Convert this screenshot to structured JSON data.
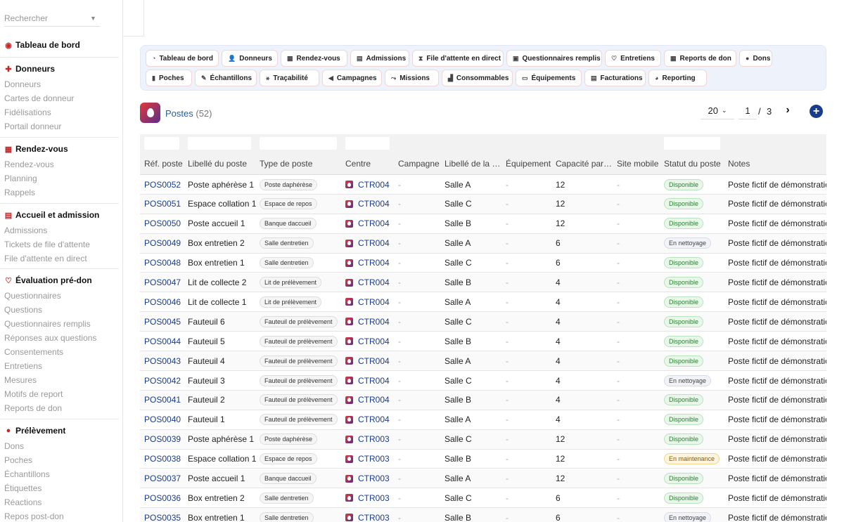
{
  "sidebar": {
    "search_placeholder": "Rechercher",
    "sections": [
      {
        "title": "Tableau de bord",
        "icon": "dashboard-icon",
        "items": []
      },
      {
        "title": "Donneurs",
        "icon": "add-user-icon",
        "items": [
          "Donneurs",
          "Cartes de donneur",
          "Fidélisations",
          "Portail donneur"
        ]
      },
      {
        "title": "Rendez-vous",
        "icon": "calendar-icon",
        "items": [
          "Rendez-vous",
          "Planning",
          "Rappels"
        ]
      },
      {
        "title": "Accueil et admission",
        "icon": "clipboard-icon",
        "items": [
          "Admissions",
          "Tickets de file d'attente",
          "File d'attente en direct"
        ]
      },
      {
        "title": "Évaluation pré-don",
        "icon": "stethoscope-icon",
        "items": [
          "Questionnaires",
          "Questions",
          "Questionnaires remplis",
          "Réponses aux questions",
          "Consentements",
          "Entretiens",
          "Mesures",
          "Motifs de report",
          "Reports de don"
        ]
      },
      {
        "title": "Prélèvement",
        "icon": "blood-drop-icon",
        "items": [
          "Dons",
          "Poches",
          "Échantillons",
          "Étiquettes",
          "Réactions",
          "Repos post-don"
        ]
      }
    ]
  },
  "quicknav": {
    "row1": [
      {
        "label": "Tableau de bord",
        "icon": "gauge-icon",
        "glyph": "◔"
      },
      {
        "label": "Donneurs",
        "icon": "add-user-icon",
        "glyph": "👤"
      },
      {
        "label": "Rendez-vous",
        "icon": "calendar-icon",
        "glyph": "▦"
      },
      {
        "label": "Admissions",
        "icon": "clipboard-icon",
        "glyph": "▤"
      },
      {
        "label": "File d'attente en direct",
        "icon": "hourglass-icon",
        "glyph": "⧗"
      },
      {
        "label": "Questionnaires remplis",
        "icon": "form-icon",
        "glyph": "▣"
      },
      {
        "label": "Entretiens",
        "icon": "stethoscope-icon",
        "glyph": "♡"
      },
      {
        "label": "Reports de don",
        "icon": "calendar-x-icon",
        "glyph": "▦"
      },
      {
        "label": "Dons",
        "icon": "blood-drop-icon",
        "glyph": "●"
      }
    ],
    "row2": [
      {
        "label": "Poches",
        "icon": "bag-icon",
        "glyph": "▮"
      },
      {
        "label": "Échantillons",
        "icon": "pipette-icon",
        "glyph": "✎"
      },
      {
        "label": "Traçabilité",
        "icon": "diagram-icon",
        "glyph": "⚹"
      },
      {
        "label": "Campagnes",
        "icon": "megaphone-icon",
        "glyph": "◀"
      },
      {
        "label": "Missions",
        "icon": "route-icon",
        "glyph": "⤳"
      },
      {
        "label": "Consommables",
        "icon": "boxes-icon",
        "glyph": "▟"
      },
      {
        "label": "Équipements",
        "icon": "monitor-icon",
        "glyph": "▭"
      },
      {
        "label": "Facturations",
        "icon": "invoice-icon",
        "glyph": "▤"
      },
      {
        "label": "Reporting",
        "icon": "pie-chart-icon",
        "glyph": "◕"
      }
    ]
  },
  "header": {
    "title": "Postes",
    "count": "(52)"
  },
  "pagination": {
    "per_page": "20",
    "page": "1",
    "separator": "/",
    "total_pages": "3"
  },
  "columns": [
    "Réf. poste",
    "Libellé du poste",
    "Type de poste",
    "Centre",
    "Campagne",
    "Libellé de la …",
    "Équipement",
    "Capacité par…",
    "Site mobile",
    "Statut du poste",
    "Notes"
  ],
  "status_styles": {
    "Disponible": {
      "bg": "#e8f7ea",
      "border": "#b9e3bf",
      "color": "#2e7d32"
    },
    "En nettoyage": {
      "bg": "#f1f3f8",
      "border": "#d7dbe6",
      "color": "#444444"
    },
    "En maintenance": {
      "bg": "#fff4dc",
      "border": "#f3d28f",
      "color": "#8a5a00"
    }
  },
  "rows": [
    {
      "ref": "POS0052",
      "libelle": "Poste aphérèse 1",
      "type": "Poste daphérèse",
      "centre": "CTR004",
      "campagne": "-",
      "salle": "Salle A",
      "equipement": "-",
      "capacite": "12",
      "site": "-",
      "statut": "Disponible",
      "notes": "Poste fictif de démonstration"
    },
    {
      "ref": "POS0051",
      "libelle": "Espace collation 1",
      "type": "Espace de repos",
      "centre": "CTR004",
      "campagne": "-",
      "salle": "Salle C",
      "equipement": "-",
      "capacite": "12",
      "site": "-",
      "statut": "Disponible",
      "notes": "Poste fictif de démonstration"
    },
    {
      "ref": "POS0050",
      "libelle": "Poste accueil 1",
      "type": "Banque daccueil",
      "centre": "CTR004",
      "campagne": "-",
      "salle": "Salle B",
      "equipement": "-",
      "capacite": "12",
      "site": "-",
      "statut": "Disponible",
      "notes": "Poste fictif de démonstration"
    },
    {
      "ref": "POS0049",
      "libelle": "Box entretien 2",
      "type": "Salle dentretien",
      "centre": "CTR004",
      "campagne": "-",
      "salle": "Salle A",
      "equipement": "-",
      "capacite": "6",
      "site": "-",
      "statut": "En nettoyage",
      "notes": "Poste fictif de démonstration"
    },
    {
      "ref": "POS0048",
      "libelle": "Box entretien 1",
      "type": "Salle dentretien",
      "centre": "CTR004",
      "campagne": "-",
      "salle": "Salle C",
      "equipement": "-",
      "capacite": "6",
      "site": "-",
      "statut": "Disponible",
      "notes": "Poste fictif de démonstration"
    },
    {
      "ref": "POS0047",
      "libelle": "Lit de collecte 2",
      "type": "Lit de prélèvement",
      "centre": "CTR004",
      "campagne": "-",
      "salle": "Salle B",
      "equipement": "-",
      "capacite": "4",
      "site": "-",
      "statut": "Disponible",
      "notes": "Poste fictif de démonstration"
    },
    {
      "ref": "POS0046",
      "libelle": "Lit de collecte 1",
      "type": "Lit de prélèvement",
      "centre": "CTR004",
      "campagne": "-",
      "salle": "Salle A",
      "equipement": "-",
      "capacite": "4",
      "site": "-",
      "statut": "Disponible",
      "notes": "Poste fictif de démonstration"
    },
    {
      "ref": "POS0045",
      "libelle": "Fauteuil 6",
      "type": "Fauteuil de prélèvement",
      "centre": "CTR004",
      "campagne": "-",
      "salle": "Salle C",
      "equipement": "-",
      "capacite": "4",
      "site": "-",
      "statut": "Disponible",
      "notes": "Poste fictif de démonstration"
    },
    {
      "ref": "POS0044",
      "libelle": "Fauteuil 5",
      "type": "Fauteuil de prélèvement",
      "centre": "CTR004",
      "campagne": "-",
      "salle": "Salle B",
      "equipement": "-",
      "capacite": "4",
      "site": "-",
      "statut": "Disponible",
      "notes": "Poste fictif de démonstration"
    },
    {
      "ref": "POS0043",
      "libelle": "Fauteuil 4",
      "type": "Fauteuil de prélèvement",
      "centre": "CTR004",
      "campagne": "-",
      "salle": "Salle A",
      "equipement": "-",
      "capacite": "4",
      "site": "-",
      "statut": "Disponible",
      "notes": "Poste fictif de démonstration"
    },
    {
      "ref": "POS0042",
      "libelle": "Fauteuil 3",
      "type": "Fauteuil de prélèvement",
      "centre": "CTR004",
      "campagne": "-",
      "salle": "Salle C",
      "equipement": "-",
      "capacite": "4",
      "site": "-",
      "statut": "En nettoyage",
      "notes": "Poste fictif de démonstration"
    },
    {
      "ref": "POS0041",
      "libelle": "Fauteuil 2",
      "type": "Fauteuil de prélèvement",
      "centre": "CTR004",
      "campagne": "-",
      "salle": "Salle B",
      "equipement": "-",
      "capacite": "4",
      "site": "-",
      "statut": "Disponible",
      "notes": "Poste fictif de démonstration"
    },
    {
      "ref": "POS0040",
      "libelle": "Fauteuil 1",
      "type": "Fauteuil de prélèvement",
      "centre": "CTR004",
      "campagne": "-",
      "salle": "Salle A",
      "equipement": "-",
      "capacite": "4",
      "site": "-",
      "statut": "Disponible",
      "notes": "Poste fictif de démonstration"
    },
    {
      "ref": "POS0039",
      "libelle": "Poste aphérèse 1",
      "type": "Poste daphérèse",
      "centre": "CTR003",
      "campagne": "-",
      "salle": "Salle C",
      "equipement": "-",
      "capacite": "12",
      "site": "-",
      "statut": "Disponible",
      "notes": "Poste fictif de démonstration"
    },
    {
      "ref": "POS0038",
      "libelle": "Espace collation 1",
      "type": "Espace de repos",
      "centre": "CTR003",
      "campagne": "-",
      "salle": "Salle B",
      "equipement": "-",
      "capacite": "12",
      "site": "-",
      "statut": "En maintenance",
      "notes": "Poste fictif de démonstration"
    },
    {
      "ref": "POS0037",
      "libelle": "Poste accueil 1",
      "type": "Banque daccueil",
      "centre": "CTR003",
      "campagne": "-",
      "salle": "Salle A",
      "equipement": "-",
      "capacite": "12",
      "site": "-",
      "statut": "Disponible",
      "notes": "Poste fictif de démonstration"
    },
    {
      "ref": "POS0036",
      "libelle": "Box entretien 2",
      "type": "Salle dentretien",
      "centre": "CTR003",
      "campagne": "-",
      "salle": "Salle C",
      "equipement": "-",
      "capacite": "6",
      "site": "-",
      "statut": "Disponible",
      "notes": "Poste fictif de démonstration"
    },
    {
      "ref": "POS0035",
      "libelle": "Box entretien 1",
      "type": "Salle dentretien",
      "centre": "CTR003",
      "campagne": "-",
      "salle": "Salle B",
      "equipement": "-",
      "capacite": "6",
      "site": "-",
      "statut": "En nettoyage",
      "notes": "Poste fictif de démonstration"
    }
  ]
}
